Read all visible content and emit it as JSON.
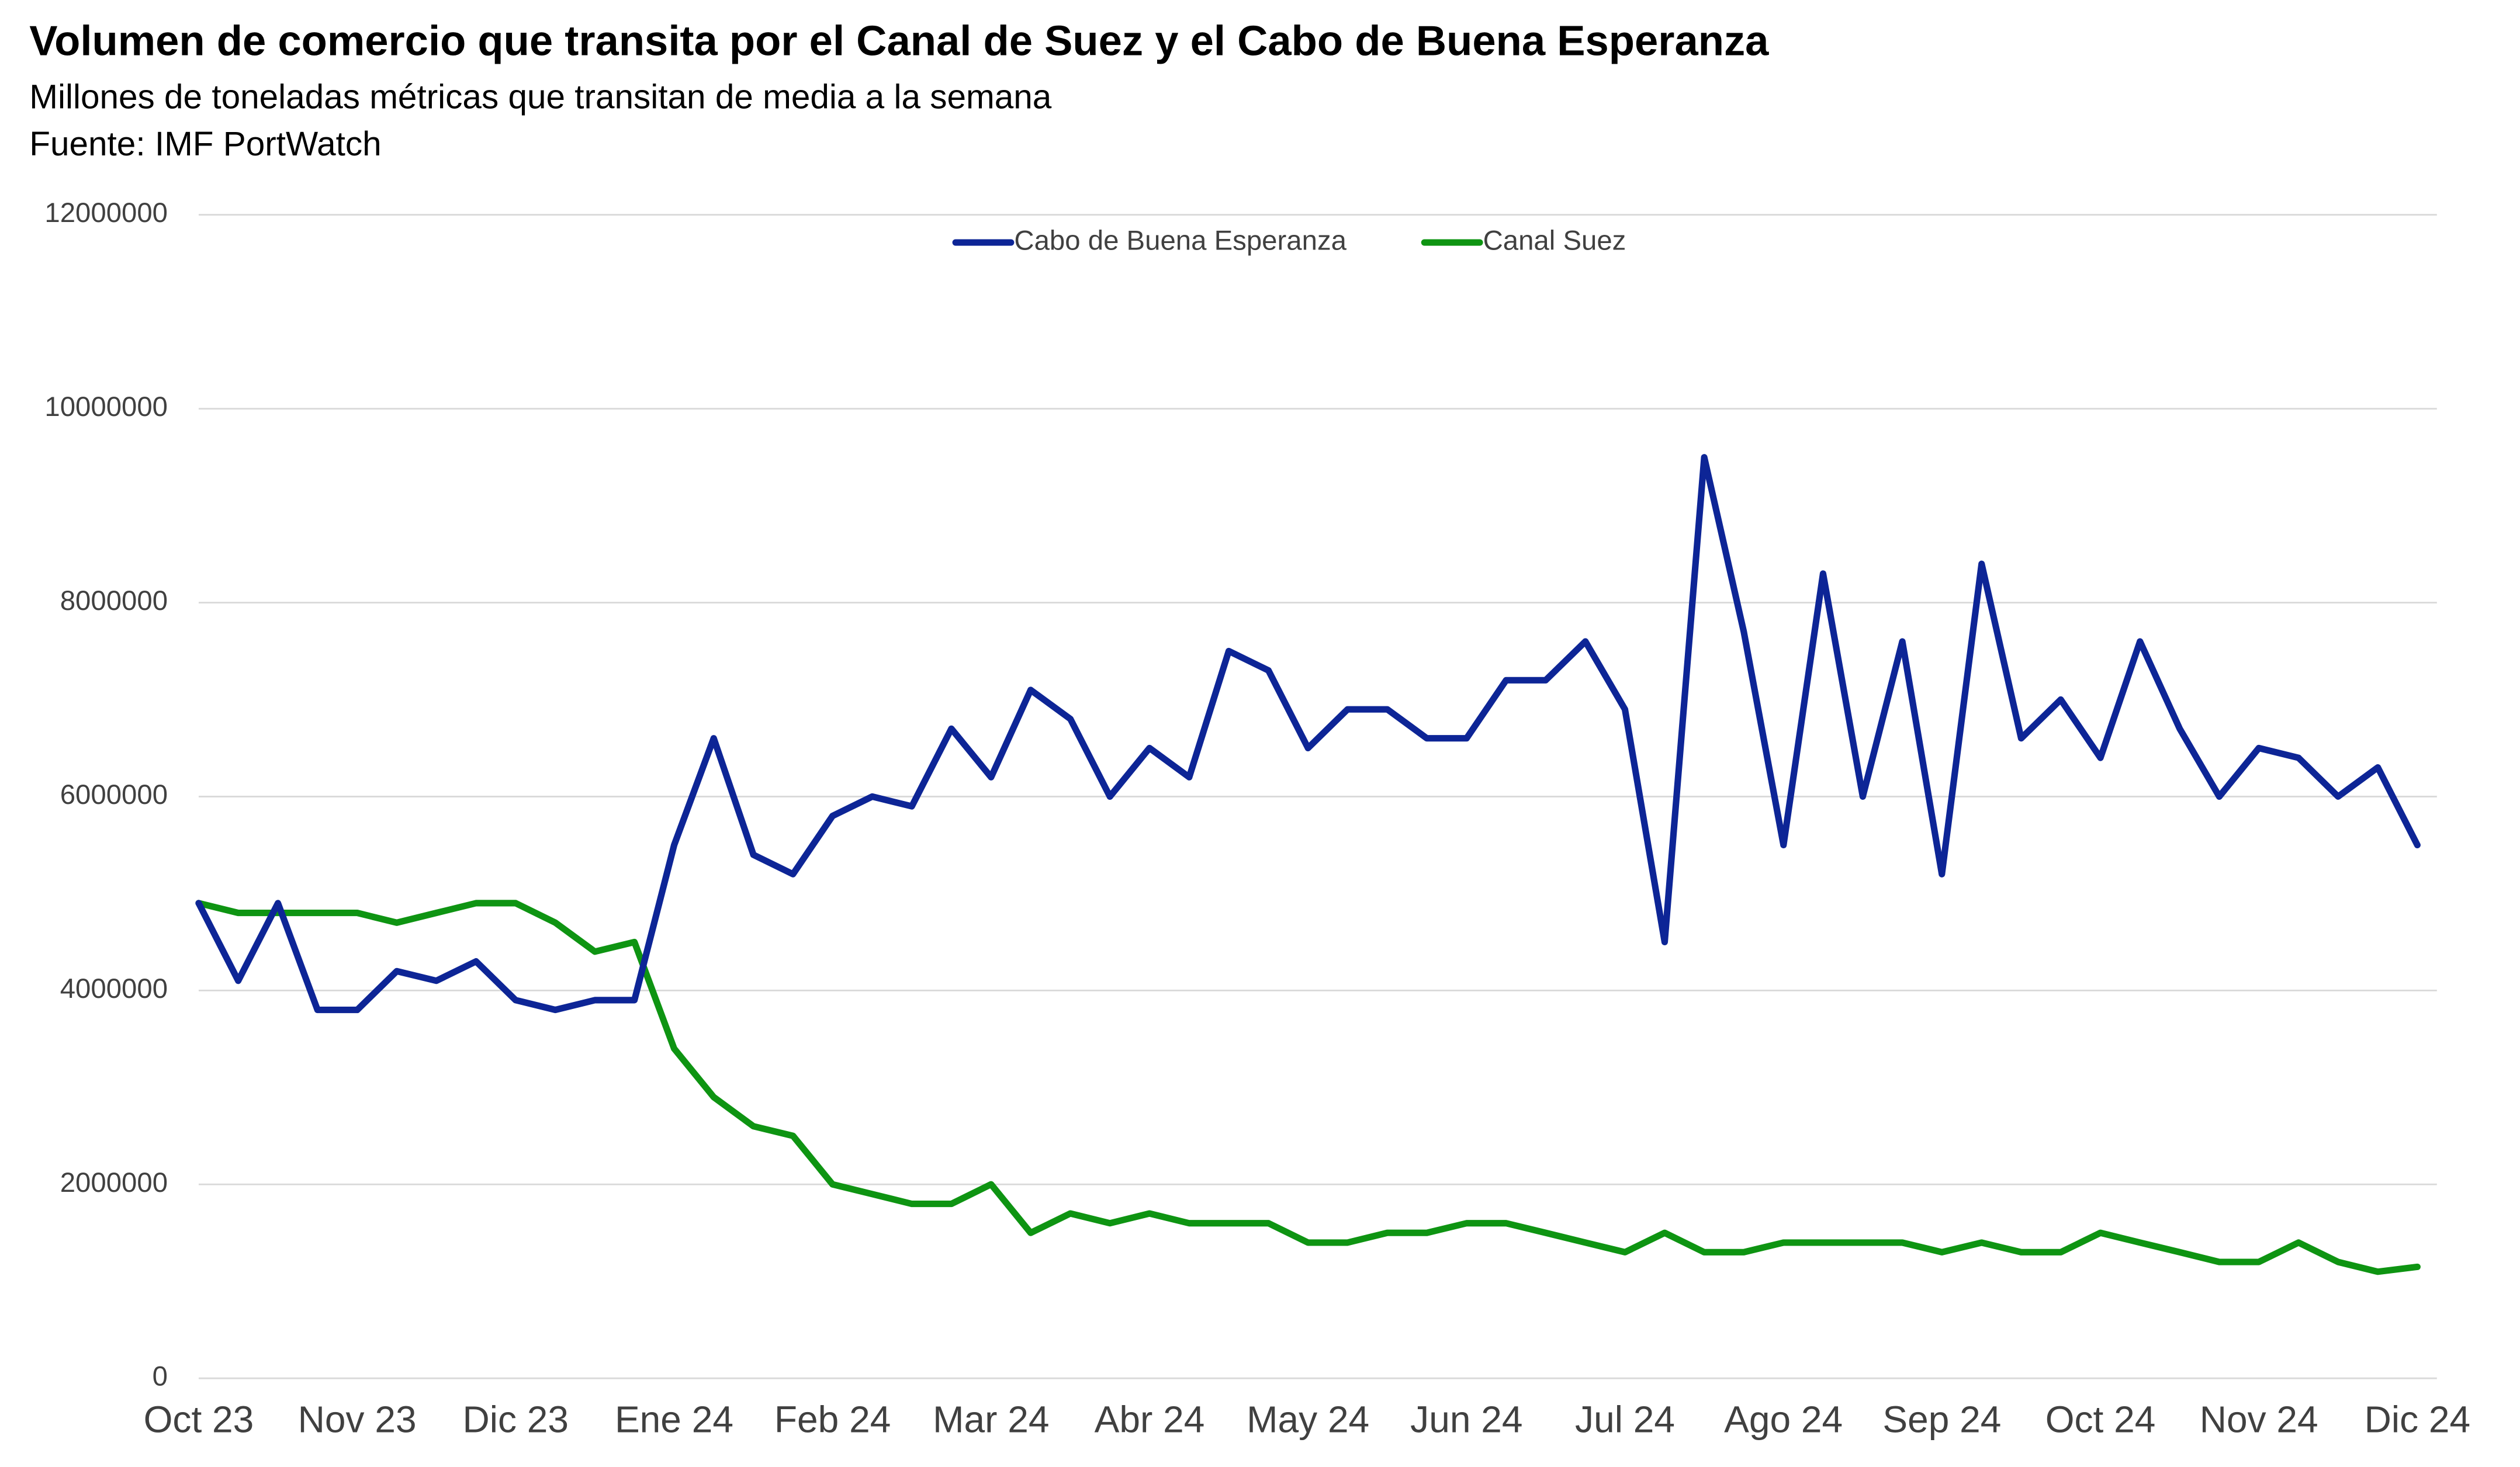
{
  "chart_data": {
    "type": "line",
    "title": "Volumen de comercio que transita por el Canal de Suez y el Cabo de Buena Esperanza",
    "subtitle": "Millones de toneladas métricas que transitan de media a la semana",
    "source": "Fuente: IMF PortWatch",
    "categories": [
      "Oct 23",
      null,
      null,
      null,
      "Nov 23",
      null,
      null,
      null,
      "Dic 23",
      null,
      null,
      null,
      "Ene 24",
      null,
      null,
      null,
      "Feb 24",
      null,
      null,
      null,
      "Mar 24",
      null,
      null,
      null,
      "Abr 24",
      null,
      null,
      null,
      "May 24",
      null,
      null,
      null,
      "Jun 24",
      null,
      null,
      null,
      "Jul 24",
      null,
      null,
      null,
      "Ago 24",
      null,
      null,
      null,
      "Sep 24",
      null,
      null,
      null,
      "Oct 24",
      null,
      null,
      null,
      "Nov 24",
      null,
      null,
      null,
      "Dic 24"
    ],
    "series": [
      {
        "name": "Cabo de Buena Esperanza",
        "color": "#0d2596",
        "values": [
          4900000,
          4100000,
          4900000,
          3800000,
          3800000,
          4200000,
          4100000,
          4300000,
          3900000,
          3800000,
          3900000,
          3900000,
          5500000,
          6600000,
          5400000,
          5200000,
          5800000,
          6000000,
          5900000,
          6700000,
          6200000,
          7100000,
          6800000,
          6000000,
          6500000,
          6200000,
          7500000,
          7300000,
          6500000,
          6900000,
          6900000,
          6600000,
          6600000,
          7200000,
          7200000,
          7600000,
          6900000,
          4500000,
          9500000,
          7700000,
          5500000,
          8300000,
          6000000,
          7600000,
          5200000,
          8400000,
          6600000,
          7000000,
          6400000,
          7600000,
          6700000,
          6000000,
          6500000,
          6400000,
          6000000,
          6300000,
          5500000
        ]
      },
      {
        "name": "Canal Suez",
        "color": "#0e9412",
        "values": [
          4900000,
          4800000,
          4800000,
          4800000,
          4800000,
          4700000,
          4800000,
          4900000,
          4900000,
          4700000,
          4400000,
          4500000,
          3400000,
          2900000,
          2600000,
          2500000,
          2000000,
          1900000,
          1800000,
          1800000,
          2000000,
          1500000,
          1700000,
          1600000,
          1700000,
          1600000,
          1600000,
          1600000,
          1400000,
          1400000,
          1500000,
          1500000,
          1600000,
          1600000,
          1500000,
          1400000,
          1300000,
          1500000,
          1300000,
          1300000,
          1400000,
          1400000,
          1400000,
          1400000,
          1300000,
          1400000,
          1300000,
          1300000,
          1500000,
          1400000,
          1300000,
          1200000,
          1200000,
          1400000,
          1200000,
          1100000,
          1150000
        ]
      }
    ],
    "ylim": [
      0,
      12000000
    ],
    "yticks": [
      0,
      2000000,
      4000000,
      6000000,
      8000000,
      10000000,
      12000000
    ],
    "grid": true,
    "legend": "top"
  }
}
